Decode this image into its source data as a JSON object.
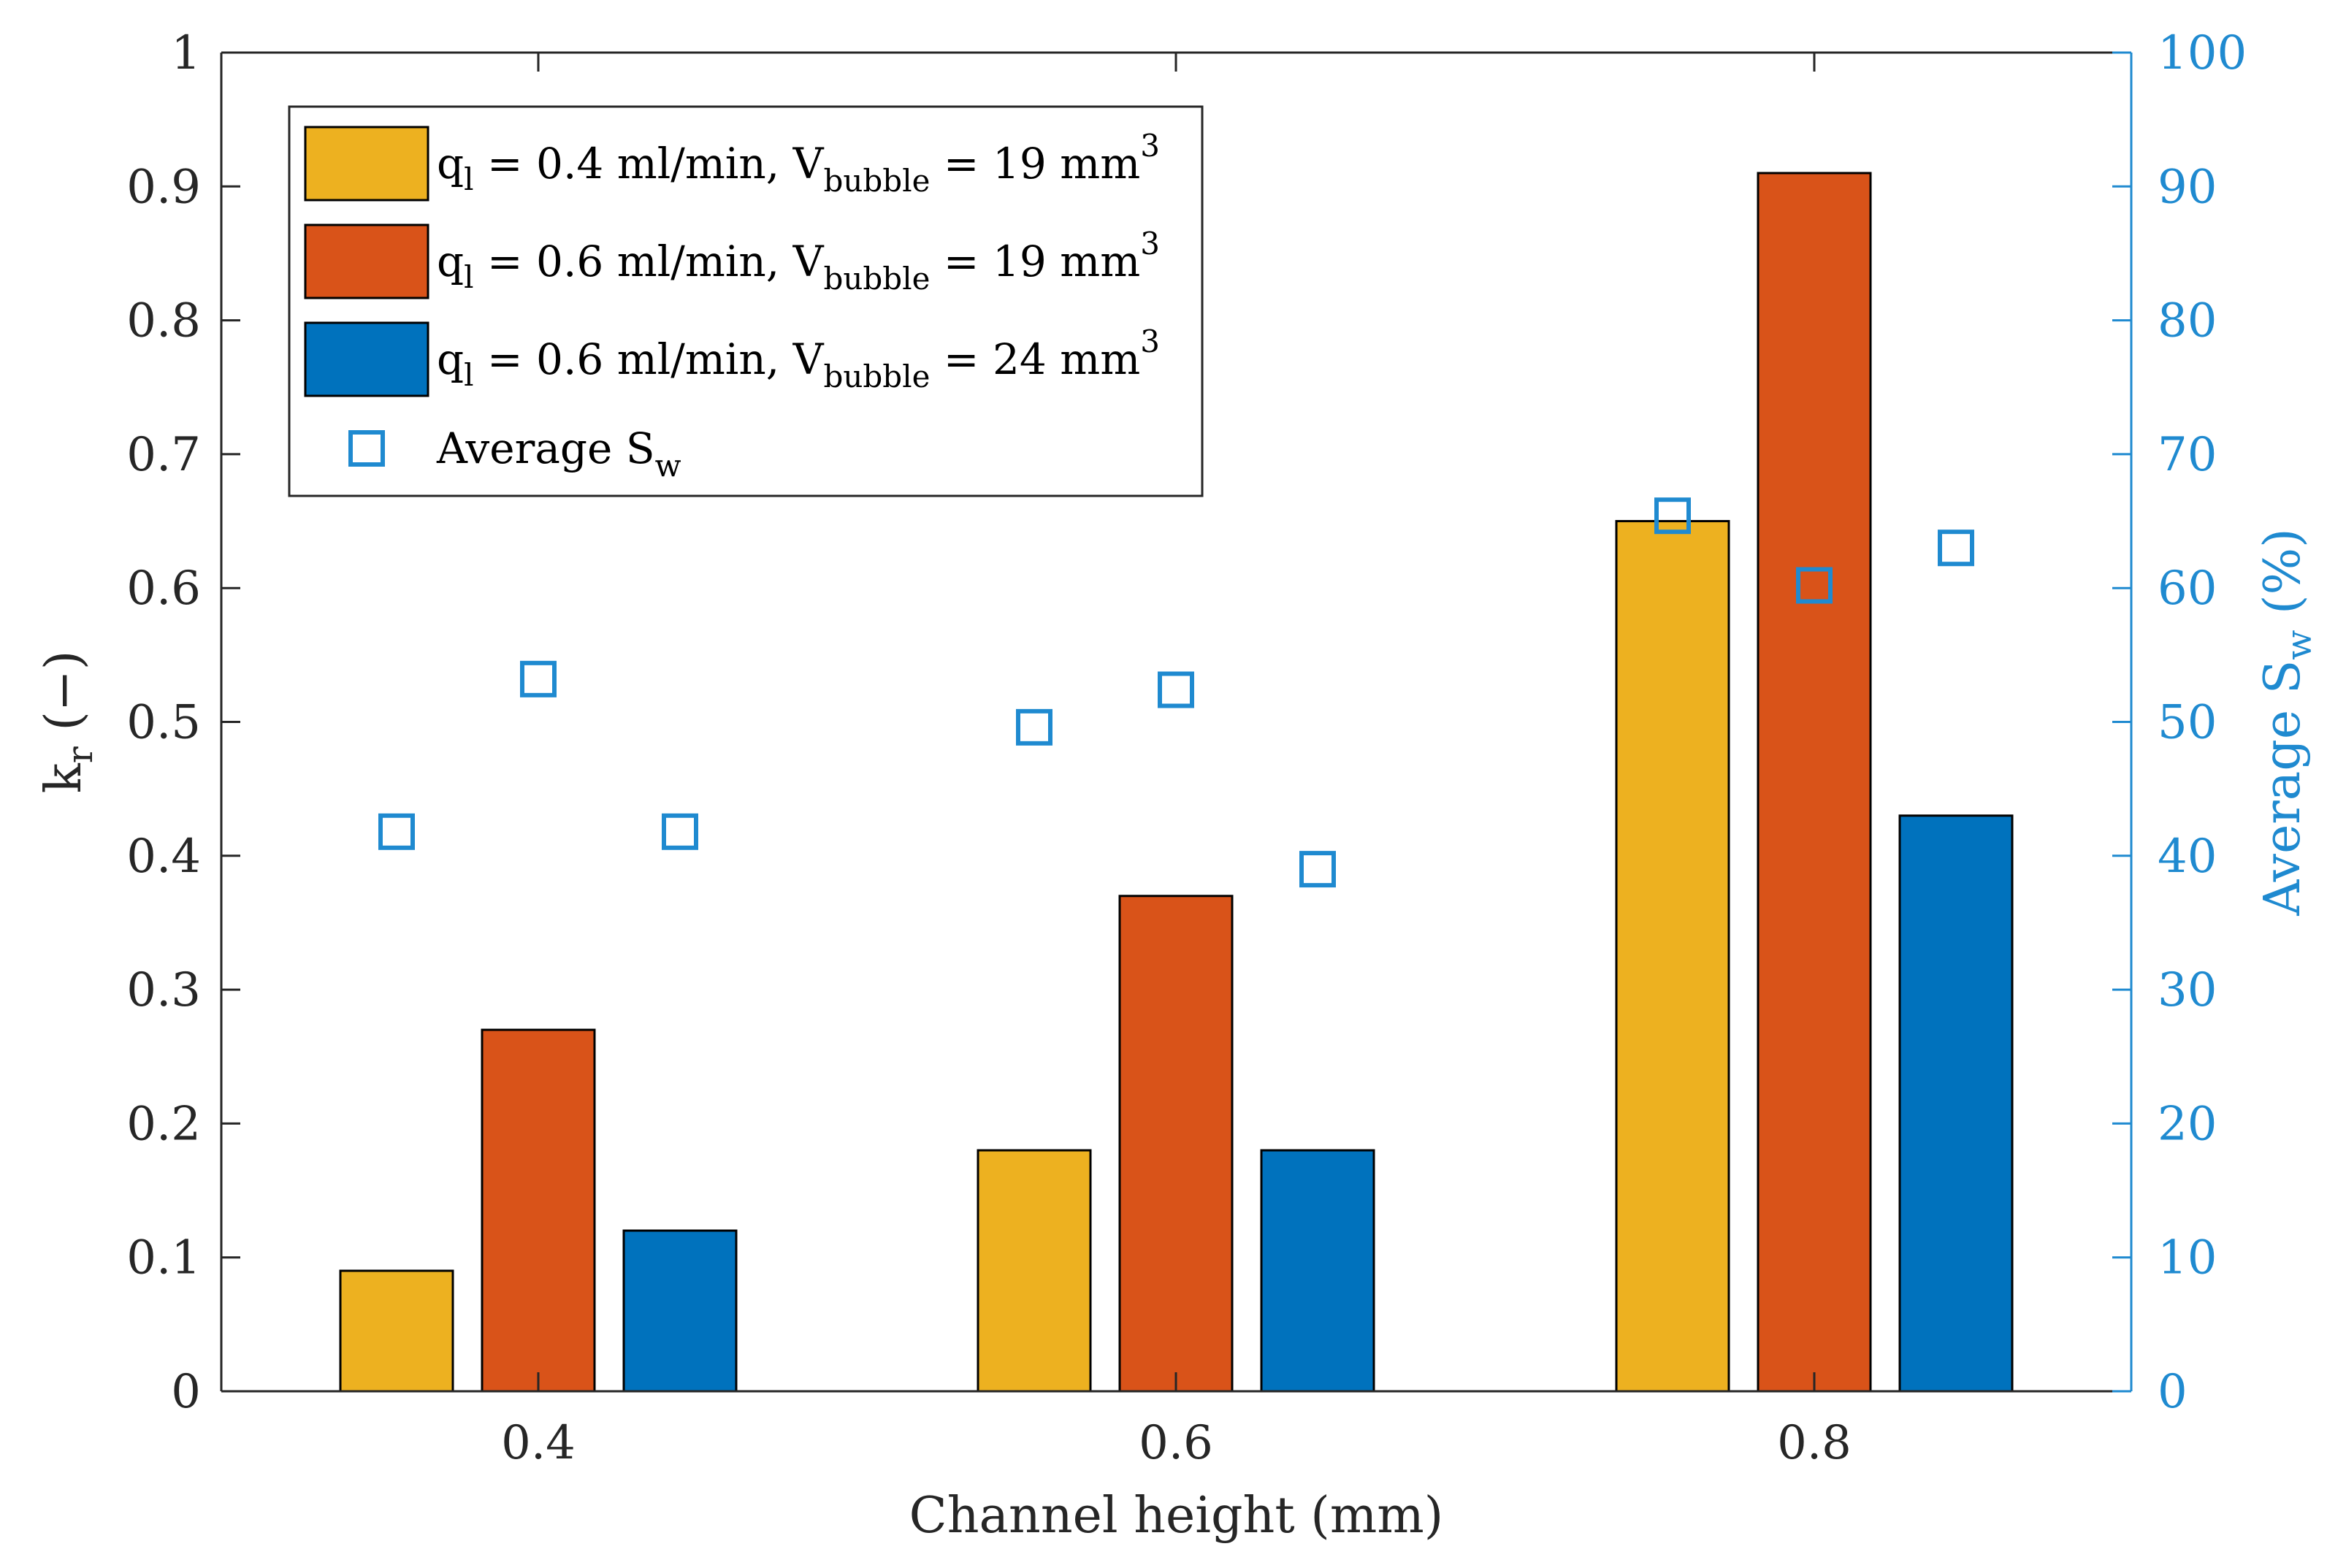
{
  "chart_data": {
    "type": "bar",
    "categories": [
      "0.4",
      "0.6",
      "0.8"
    ],
    "xlabel": "Channel height (mm)",
    "ylabel_left": {
      "main": "k",
      "sub": "r",
      "tail": " (−)"
    },
    "ylabel_right": {
      "main": "Average S",
      "sub": "w",
      "tail": " (%)"
    },
    "ylim_left": [
      0,
      1
    ],
    "ylim_right": [
      0,
      100
    ],
    "yticks_left": [
      "0",
      "0.1",
      "0.2",
      "0.3",
      "0.4",
      "0.5",
      "0.6",
      "0.7",
      "0.8",
      "0.9",
      "1"
    ],
    "yticks_right": [
      "0",
      "10",
      "20",
      "30",
      "40",
      "50",
      "60",
      "70",
      "80",
      "90",
      "100"
    ],
    "series": [
      {
        "name": "q_l = 0.4 ml/min, V_bubble = 19 mm^3",
        "legend": {
          "a": "q",
          "a_sub": "l",
          "b": " = 0.4 ml/min, V",
          "b_sub": "bubble",
          "c": " = 19 mm",
          "c_sup": "3"
        },
        "color": "#EDB120",
        "values": [
          0.09,
          0.18,
          0.65
        ]
      },
      {
        "name": "q_l = 0.6 ml/min, V_bubble = 19 mm^3",
        "legend": {
          "a": "q",
          "a_sub": "l",
          "b": " = 0.6 ml/min, V",
          "b_sub": "bubble",
          "c": " = 19 mm",
          "c_sup": "3"
        },
        "color": "#D95319",
        "values": [
          0.27,
          0.37,
          0.91
        ]
      },
      {
        "name": "q_l = 0.6 ml/min, V_bubble = 24 mm^3",
        "legend": {
          "a": "q",
          "a_sub": "l",
          "b": " = 0.6 ml/min, V",
          "b_sub": "bubble",
          "c": " = 24 mm",
          "c_sup": "3"
        },
        "color": "#0072BD",
        "values": [
          0.12,
          0.18,
          0.43
        ]
      }
    ],
    "scatter_series": {
      "name": "Average S_w",
      "legend": {
        "a": "Average S",
        "a_sub": "w"
      },
      "color": "#1F8AD0",
      "marker": "square-open",
      "axis": "right",
      "values": [
        [
          41.8,
          53.2,
          41.8
        ],
        [
          49.6,
          52.4,
          39.0
        ],
        [
          65.4,
          60.2,
          63.0
        ]
      ]
    },
    "legend_position": "top-left"
  }
}
